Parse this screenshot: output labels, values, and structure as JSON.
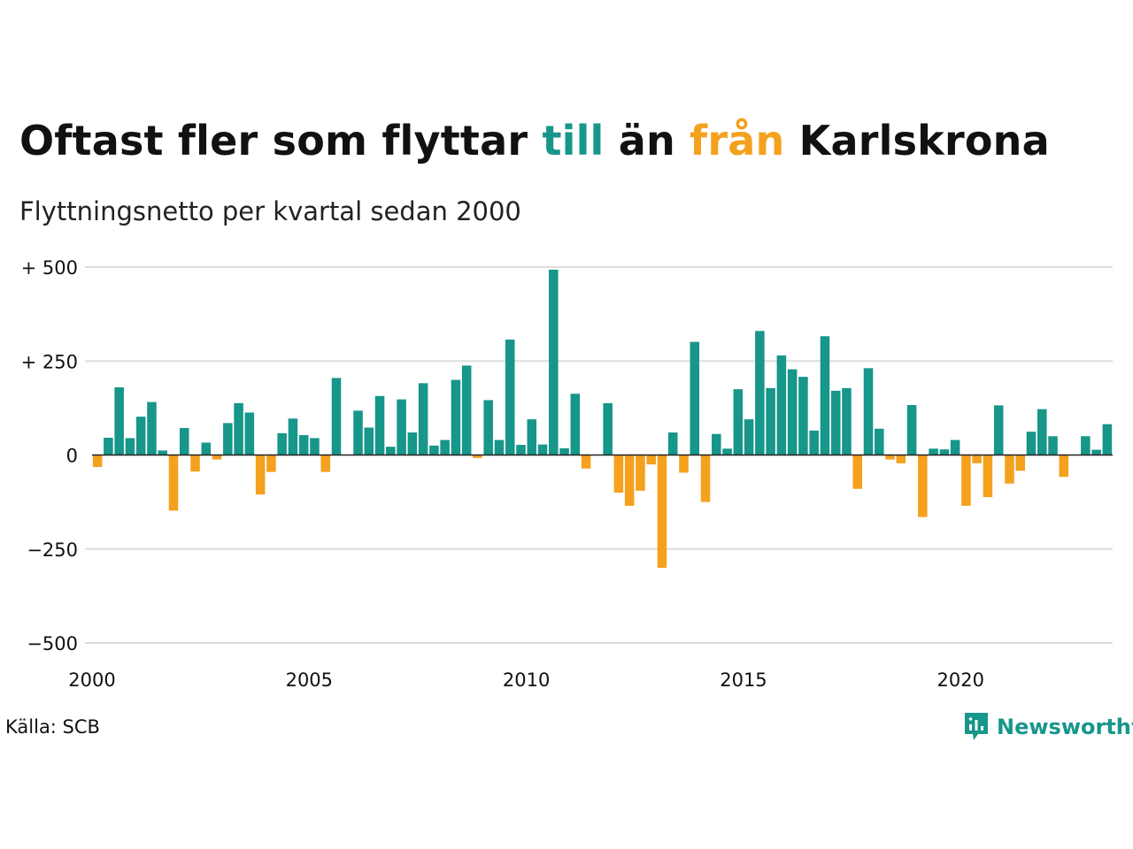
{
  "title": {
    "part1": "Oftast fler som flyttar ",
    "till": "till",
    "part2": " än ",
    "fran": "från",
    "part3": " Karlskrona"
  },
  "subtitle": "Flyttningsnetto per kvartal sedan 2000",
  "source": "Källa: SCB",
  "brand": {
    "name": "Newsworthy",
    "icon": "newsworthy-logo-icon"
  },
  "colors": {
    "positive": "#17968a",
    "negative": "#f4a11e",
    "grid": "#dddddd",
    "zero_line": "#222222"
  },
  "chart_data": {
    "type": "bar",
    "title": "Oftast fler som flyttar till än från Karlskrona",
    "subtitle": "Flyttningsnetto per kvartal sedan 2000",
    "xlabel": "",
    "ylabel": "",
    "x_start": 2000,
    "x_range": [
      2000,
      2023.5
    ],
    "ylim": [
      -500,
      500
    ],
    "y_ticks": [
      500,
      250,
      0,
      -250,
      -500
    ],
    "y_tick_labels": [
      "+ 500",
      "+ 250",
      "0",
      "−250",
      "−500"
    ],
    "x_ticks": [
      2000,
      2005,
      2010,
      2015,
      2020
    ],
    "x_tick_labels": [
      "2000",
      "2005",
      "2010",
      "2015",
      "2020"
    ],
    "grid": true,
    "categories": [
      "2000 Q1",
      "2000 Q2",
      "2000 Q3",
      "2000 Q4",
      "2001 Q1",
      "2001 Q2",
      "2001 Q3",
      "2001 Q4",
      "2002 Q1",
      "2002 Q2",
      "2002 Q3",
      "2002 Q4",
      "2003 Q1",
      "2003 Q2",
      "2003 Q3",
      "2003 Q4",
      "2004 Q1",
      "2004 Q2",
      "2004 Q3",
      "2004 Q4",
      "2005 Q1",
      "2005 Q2",
      "2005 Q3",
      "2005 Q4",
      "2006 Q1",
      "2006 Q2",
      "2006 Q3",
      "2006 Q4",
      "2007 Q1",
      "2007 Q2",
      "2007 Q3",
      "2007 Q4",
      "2008 Q1",
      "2008 Q2",
      "2008 Q3",
      "2008 Q4",
      "2009 Q1",
      "2009 Q2",
      "2009 Q3",
      "2009 Q4",
      "2010 Q1",
      "2010 Q2",
      "2010 Q3",
      "2010 Q4",
      "2011 Q1",
      "2011 Q2",
      "2011 Q3",
      "2011 Q4",
      "2012 Q1",
      "2012 Q2",
      "2012 Q3",
      "2012 Q4",
      "2013 Q1",
      "2013 Q2",
      "2013 Q3",
      "2013 Q4",
      "2014 Q1",
      "2014 Q2",
      "2014 Q3",
      "2014 Q4",
      "2015 Q1",
      "2015 Q2",
      "2015 Q3",
      "2015 Q4",
      "2016 Q1",
      "2016 Q2",
      "2016 Q3",
      "2016 Q4",
      "2017 Q1",
      "2017 Q2",
      "2017 Q3",
      "2017 Q4",
      "2018 Q1",
      "2018 Q2",
      "2018 Q3",
      "2018 Q4",
      "2019 Q1",
      "2019 Q2",
      "2019 Q3",
      "2019 Q4",
      "2020 Q1",
      "2020 Q2",
      "2020 Q3",
      "2020 Q4",
      "2021 Q1",
      "2021 Q2",
      "2021 Q3",
      "2021 Q4",
      "2022 Q1",
      "2022 Q2",
      "2022 Q3",
      "2022 Q4",
      "2023 Q1",
      "2023 Q2"
    ],
    "values": [
      -32,
      46,
      180,
      45,
      102,
      141,
      12,
      -148,
      72,
      -44,
      33,
      -12,
      85,
      138,
      113,
      -105,
      -45,
      58,
      97,
      53,
      45,
      -45,
      205,
      0,
      118,
      73,
      157,
      22,
      148,
      60,
      191,
      25,
      40,
      200,
      238,
      -8,
      146,
      40,
      307,
      27,
      95,
      28,
      493,
      18,
      163,
      -36,
      0,
      138,
      -100,
      -135,
      -95,
      -25,
      -300,
      60,
      -47,
      301,
      -125,
      56,
      17,
      175,
      95,
      330,
      178,
      265,
      228,
      208,
      65,
      316,
      171,
      178,
      -90,
      231,
      70,
      -12,
      -22,
      133,
      -165,
      17,
      15,
      40,
      -135,
      -22,
      -112,
      132,
      -76,
      -42,
      62,
      122,
      50,
      -58,
      0,
      50,
      14,
      82
    ]
  }
}
